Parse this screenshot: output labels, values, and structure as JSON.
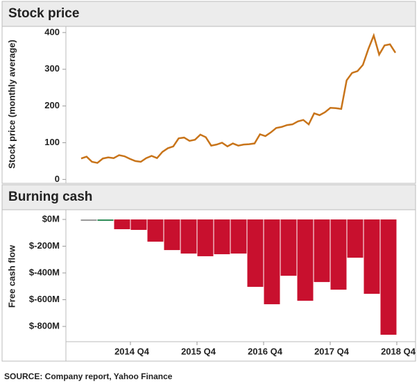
{
  "chart_data": [
    {
      "type": "line",
      "title": "Stock price",
      "y_label": "Stock price (monthly average)",
      "series": [
        {
          "color": "#c8741a",
          "values": [
            57,
            62,
            48,
            45,
            57,
            60,
            58,
            66,
            63,
            56,
            50,
            48,
            58,
            64,
            58,
            75,
            85,
            90,
            112,
            114,
            105,
            108,
            122,
            115,
            92,
            95,
            100,
            90,
            98,
            92,
            95,
            96,
            98,
            123,
            118,
            128,
            140,
            143,
            148,
            150,
            158,
            162,
            150,
            180,
            175,
            183,
            195,
            194,
            192,
            270,
            290,
            295,
            312,
            355,
            392,
            340,
            365,
            368,
            345
          ]
        }
      ],
      "ylim": [
        -5,
        413
      ],
      "yticks": [
        0,
        100,
        200,
        300,
        400
      ]
    },
    {
      "type": "bar",
      "title": "Burning cash",
      "y_label": "Free cash flow",
      "categories": [
        null,
        null,
        "2014 Q4",
        null,
        null,
        null,
        "2015 Q4",
        null,
        null,
        null,
        "2016 Q4",
        null,
        null,
        null,
        "2017 Q4",
        null,
        null,
        null,
        "2018 Q4"
      ],
      "values": [
        -3,
        -5,
        -73,
        -78,
        -166,
        -229,
        -255,
        -275,
        -260,
        -255,
        -504,
        -634,
        -421,
        -608,
        -468,
        -525,
        -286,
        -556,
        -862
      ],
      "colors": [
        "#999999",
        "#2e8b57",
        "#c8102e",
        "#c8102e",
        "#c8102e",
        "#c8102e",
        "#c8102e",
        "#c8102e",
        "#c8102e",
        "#c8102e",
        "#c8102e",
        "#c8102e",
        "#c8102e",
        "#c8102e",
        "#c8102e",
        "#c8102e",
        "#c8102e",
        "#c8102e",
        "#c8102e"
      ],
      "ylim": [
        -914,
        57
      ],
      "yticks": [
        {
          "value": 0,
          "label": "$0M"
        },
        {
          "value": -200,
          "label": "$-200M"
        },
        {
          "value": -400,
          "label": "$-400M"
        },
        {
          "value": -600,
          "label": "$-600M"
        },
        {
          "value": -800,
          "label": "$-800M"
        }
      ]
    }
  ],
  "source": "SOURCE: Company report, Yahoo Finance"
}
